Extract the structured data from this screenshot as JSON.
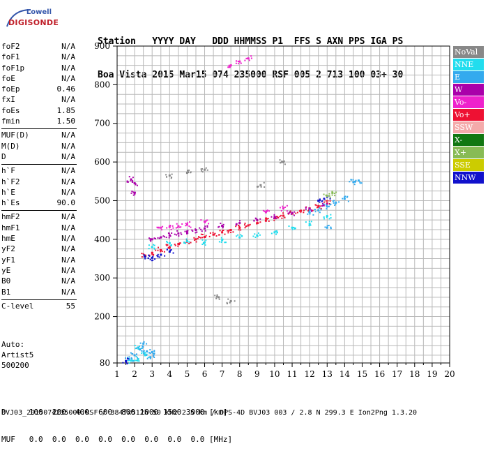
{
  "logo": {
    "line1": "Lowell",
    "line2": "DIGISONDE"
  },
  "header": {
    "labels": "Station   YYYY DAY   DDD HHMMSS P1  FFS S AXN PPS IGA PS",
    "values": "Boa Vista 2015 Mar15 074 235000 RSF 005 2 713 100 03+ 30"
  },
  "params": [
    {
      "group": [
        {
          "k": "foF2",
          "v": "N/A"
        },
        {
          "k": "foF1",
          "v": "N/A"
        },
        {
          "k": "foF1p",
          "v": "N/A"
        },
        {
          "k": "foE",
          "v": "N/A"
        },
        {
          "k": "foEp",
          "v": "0.46"
        },
        {
          "k": "fxI",
          "v": "N/A"
        },
        {
          "k": "foEs",
          "v": "1.85"
        },
        {
          "k": "fmin",
          "v": "1.50"
        }
      ]
    },
    {
      "group": [
        {
          "k": "MUF(D)",
          "v": "N/A"
        },
        {
          "k": "M(D)",
          "v": "N/A"
        },
        {
          "k": "D",
          "v": "N/A"
        }
      ]
    },
    {
      "group": [
        {
          "k": "h`F",
          "v": "N/A"
        },
        {
          "k": "h`F2",
          "v": "N/A"
        },
        {
          "k": "h`E",
          "v": "N/A"
        },
        {
          "k": "h`Es",
          "v": "90.0"
        }
      ]
    },
    {
      "group": [
        {
          "k": "hmF2",
          "v": "N/A"
        },
        {
          "k": "hmF1",
          "v": "N/A"
        },
        {
          "k": "hmE",
          "v": "N/A"
        },
        {
          "k": "yF2",
          "v": "N/A"
        },
        {
          "k": "yF1",
          "v": "N/A"
        },
        {
          "k": "yE",
          "v": "N/A"
        },
        {
          "k": "B0",
          "v": "N/A"
        },
        {
          "k": "B1",
          "v": "N/A"
        }
      ]
    },
    {
      "group": [
        {
          "k": "C-level",
          "v": "55"
        }
      ]
    }
  ],
  "auto": {
    "line1": "Auto:",
    "line2": "Artist5",
    "line3": "500200"
  },
  "bottom": {
    "d_row": "D     100  200  400  600  800 1000 1500 3000 [km]",
    "muf_row": "MUF   0.0  0.0  0.0  0.0  0.0  0.0  0.0  0.0 [MHz]"
  },
  "footer": "BVJ03_2015074235000.RSF / 384fx512h 50 kHz 2.5 km / DPS-4D BVJ03 003 / 2.8 N 299.3 E Ion2Png 1.3.20",
  "legend": [
    {
      "label": "NoVal",
      "color": "#888888"
    },
    {
      "label": "NNE",
      "color": "#22ddee"
    },
    {
      "label": "E",
      "color": "#33aaee"
    },
    {
      "label": "W",
      "color": "#aa00aa"
    },
    {
      "label": "Vo-",
      "color": "#ee22cc"
    },
    {
      "label": "Vo+",
      "color": "#ee1133"
    },
    {
      "label": "SSW",
      "color": "#f4aaaa"
    },
    {
      "label": "X-",
      "color": "#117711"
    },
    {
      "label": "X+",
      "color": "#88bb55"
    },
    {
      "label": "SSE",
      "color": "#cccc00"
    },
    {
      "label": "NNW",
      "color": "#1111cc"
    }
  ],
  "chart_data": {
    "type": "scatter",
    "title": "",
    "xlabel": "",
    "ylabel": "",
    "xlim": [
      1,
      20
    ],
    "ylim": [
      80,
      900
    ],
    "x_ticks": [
      1,
      2,
      3,
      4,
      5,
      6,
      7,
      8,
      9,
      10,
      11,
      12,
      13,
      14,
      15,
      16,
      17,
      18,
      19,
      20
    ],
    "y_ticks": [
      80,
      200,
      300,
      400,
      500,
      600,
      700,
      800,
      900
    ],
    "grid": true,
    "legend_position": "right",
    "series": [
      {
        "name": "Vo+",
        "color": "#ee1133",
        "points": [
          [
            2.6,
            358
          ],
          [
            3,
            365
          ],
          [
            3.5,
            372
          ],
          [
            4,
            380
          ],
          [
            4.5,
            388
          ],
          [
            5,
            394
          ],
          [
            5.5,
            400
          ],
          [
            6,
            406
          ],
          [
            6.5,
            412
          ],
          [
            7,
            418
          ],
          [
            7.5,
            424
          ],
          [
            8,
            430
          ],
          [
            8.5,
            436
          ],
          [
            9,
            442
          ],
          [
            9.5,
            448
          ],
          [
            10,
            455
          ],
          [
            10.5,
            461
          ],
          [
            11,
            467
          ],
          [
            11.5,
            474
          ],
          [
            12,
            480
          ],
          [
            12.5,
            486
          ],
          [
            13,
            493
          ]
        ]
      },
      {
        "name": "W",
        "color": "#aa00aa",
        "points": [
          [
            3,
            400
          ],
          [
            3.5,
            405
          ],
          [
            4,
            410
          ],
          [
            4.5,
            415
          ],
          [
            5,
            420
          ],
          [
            5.5,
            424
          ],
          [
            6,
            428
          ],
          [
            7,
            435
          ],
          [
            8,
            442
          ],
          [
            9,
            450
          ],
          [
            10,
            458
          ],
          [
            11,
            468
          ],
          [
            12,
            478
          ],
          [
            12.8,
            488
          ],
          [
            2,
            520
          ],
          [
            2,
            545
          ],
          [
            1.8,
            555
          ]
        ]
      },
      {
        "name": "Vo-",
        "color": "#ee22cc",
        "points": [
          [
            3.5,
            430
          ],
          [
            4,
            432
          ],
          [
            4.5,
            434
          ],
          [
            5,
            438
          ],
          [
            6,
            446
          ],
          [
            7.5,
            850
          ],
          [
            8,
            860
          ],
          [
            8.5,
            868
          ],
          [
            9.5,
            470
          ],
          [
            10.5,
            480
          ]
        ]
      },
      {
        "name": "NNE",
        "color": "#22ddee",
        "points": [
          [
            3,
            380
          ],
          [
            4,
            390
          ],
          [
            5,
            395
          ],
          [
            6,
            392
          ],
          [
            7,
            398
          ],
          [
            8,
            405
          ],
          [
            9,
            410
          ],
          [
            10,
            418
          ],
          [
            11,
            430
          ],
          [
            12,
            440
          ],
          [
            13,
            460
          ],
          [
            1.8,
            86
          ],
          [
            2.2,
            90
          ],
          [
            2.6,
            100
          ],
          [
            2.2,
            120
          ]
        ]
      },
      {
        "name": "E",
        "color": "#33aaee",
        "points": [
          [
            12,
            470
          ],
          [
            12.5,
            475
          ],
          [
            13,
            485
          ],
          [
            13.5,
            495
          ],
          [
            14,
            505
          ],
          [
            14.5,
            548
          ],
          [
            14.8,
            552
          ],
          [
            13,
            430
          ],
          [
            2,
            100
          ],
          [
            2.3,
            115
          ],
          [
            2.5,
            130
          ],
          [
            2.7,
            110
          ],
          [
            1.7,
            90
          ],
          [
            2.9,
            95
          ],
          [
            3,
            108
          ]
        ]
      },
      {
        "name": "NNW",
        "color": "#1111cc",
        "points": [
          [
            2.6,
            355
          ],
          [
            3,
            352
          ],
          [
            3.5,
            360
          ],
          [
            4,
            368
          ],
          [
            12.5,
            500
          ],
          [
            13,
            510
          ],
          [
            1.5,
            85
          ]
        ]
      },
      {
        "name": "X+",
        "color": "#88bb55",
        "points": [
          [
            13.3,
            520
          ],
          [
            13,
            512
          ]
        ]
      },
      {
        "name": "NoVal",
        "color": "#888888",
        "points": [
          [
            4,
            565
          ],
          [
            5,
            572
          ],
          [
            6,
            580
          ],
          [
            6.8,
            250
          ],
          [
            7.5,
            240
          ],
          [
            10.5,
            600
          ],
          [
            9.2,
            540
          ]
        ]
      }
    ]
  }
}
